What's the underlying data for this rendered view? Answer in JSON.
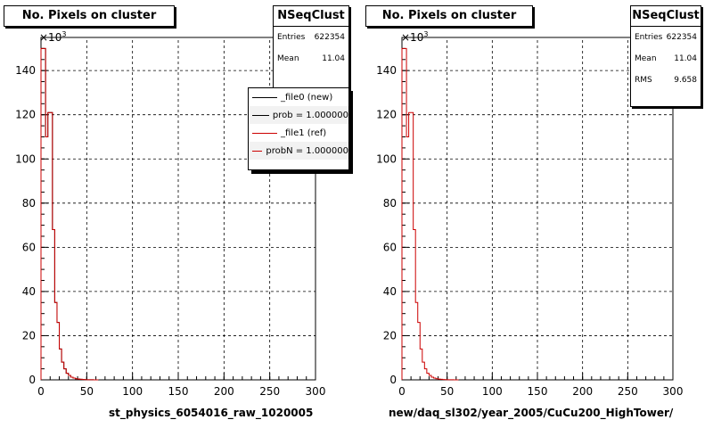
{
  "chart_data": [
    {
      "type": "histogram",
      "title": "No. Pixels on cluster",
      "xlabel": "st_physics_6054016_raw_1020005",
      "xlim": [
        0,
        300
      ],
      "ylim": [
        0,
        155000
      ],
      "x_ticks": [
        0,
        50,
        100,
        150,
        200,
        250,
        300
      ],
      "y_ticks": [
        0,
        20,
        40,
        60,
        80,
        100,
        120,
        140
      ],
      "y_exponent": "×10",
      "y_exponent_power": "3",
      "grid": true,
      "bin_width": 2.5,
      "series": [
        {
          "name": "_file0 (new)",
          "color": "#000000",
          "values": [
            150000,
            150000,
            110000,
            121000,
            121000,
            68000,
            35000,
            26000,
            14000,
            8000,
            5000,
            3000,
            2000,
            1200,
            800,
            500,
            350,
            250,
            150,
            100,
            70,
            50,
            30,
            20,
            10
          ]
        },
        {
          "name": "_file1 (ref)",
          "color": "#cc0000",
          "values": [
            150000,
            150000,
            110000,
            121000,
            121000,
            68000,
            35000,
            26000,
            14000,
            8000,
            5000,
            3000,
            2000,
            1200,
            800,
            500,
            350,
            250,
            150,
            100,
            70,
            50,
            30,
            20,
            10
          ]
        }
      ],
      "stats": {
        "title": "NSeqClust",
        "entries_label": "Entries",
        "entries": "622354",
        "mean_label": "Mean",
        "mean": "11.04"
      },
      "legend": {
        "placement": "top-right",
        "entries": [
          "_file0 (new)",
          "prob = 1.000000",
          "_file1 (ref)",
          "probN = 1.000000"
        ]
      }
    },
    {
      "type": "histogram",
      "title": "No. Pixels on cluster",
      "xlabel": "new/daq_sl302/year_2005/CuCu200_HighTower/",
      "xlim": [
        0,
        300
      ],
      "ylim": [
        0,
        155000
      ],
      "x_ticks": [
        0,
        50,
        100,
        150,
        200,
        250,
        300
      ],
      "y_ticks": [
        0,
        20,
        40,
        60,
        80,
        100,
        120,
        140
      ],
      "y_exponent": "×10",
      "y_exponent_power": "3",
      "grid": true,
      "bin_width": 2.5,
      "series": [
        {
          "name": "",
          "color": "#cc0000",
          "values": [
            150000,
            150000,
            110000,
            121000,
            121000,
            68000,
            35000,
            26000,
            14000,
            8000,
            5000,
            3000,
            2000,
            1200,
            800,
            500,
            350,
            250,
            150,
            100,
            70,
            50,
            30,
            20,
            10
          ]
        }
      ],
      "stats": {
        "title": "NSeqClust",
        "entries_label": "Entries",
        "entries": "622354",
        "mean_label": "Mean",
        "mean": "11.04",
        "rms_label": "RMS",
        "rms": "9.658"
      }
    }
  ]
}
